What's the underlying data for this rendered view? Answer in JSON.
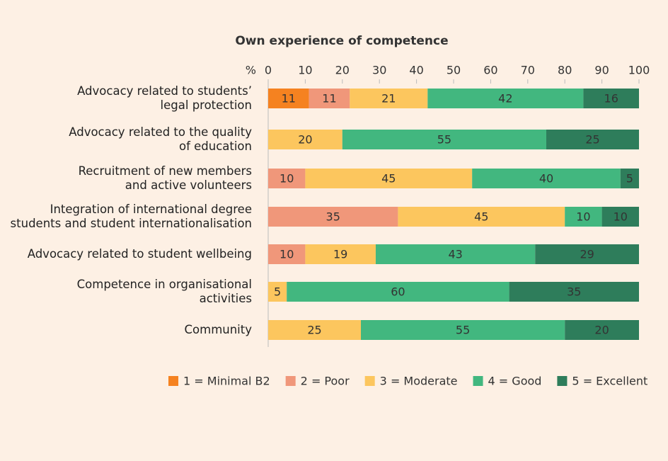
{
  "chart_data": {
    "type": "stacked_barh",
    "title": "Own experience of competence",
    "xlabel": "%",
    "categories": [
      "Advocacy related to students’\nlegal protection",
      "Advocacy related to the quality\nof education",
      "Recruitment of new members\nand active volunteers",
      "Integration of international degree\nstudents and student internationalisation",
      "Advocacy related to student wellbeing",
      "Competence in organisational\nactivities",
      "Community"
    ],
    "series": [
      {
        "name": "1 = Minimal B2",
        "color": "#f58220",
        "values": [
          11,
          null,
          null,
          null,
          null,
          null,
          null
        ]
      },
      {
        "name": "2 = Poor",
        "color": "#f0977a",
        "values": [
          11,
          null,
          10,
          35,
          10,
          null,
          null
        ]
      },
      {
        "name": "3 =  Moderate",
        "color": "#fcc65e",
        "values": [
          21,
          20,
          45,
          45,
          19,
          5,
          25
        ]
      },
      {
        "name": "4 = Good",
        "color": "#42b77f",
        "values": [
          42,
          55,
          40,
          10,
          43,
          60,
          55
        ]
      },
      {
        "name": "5 = Excellent",
        "color": "#2e7d5b",
        "values": [
          16,
          25,
          5,
          10,
          29,
          35,
          20
        ]
      }
    ],
    "xlim": [
      0,
      100
    ],
    "xticks": [
      0,
      10,
      20,
      30,
      40,
      50,
      60,
      70,
      80,
      90,
      100
    ],
    "legend": "bottom"
  }
}
